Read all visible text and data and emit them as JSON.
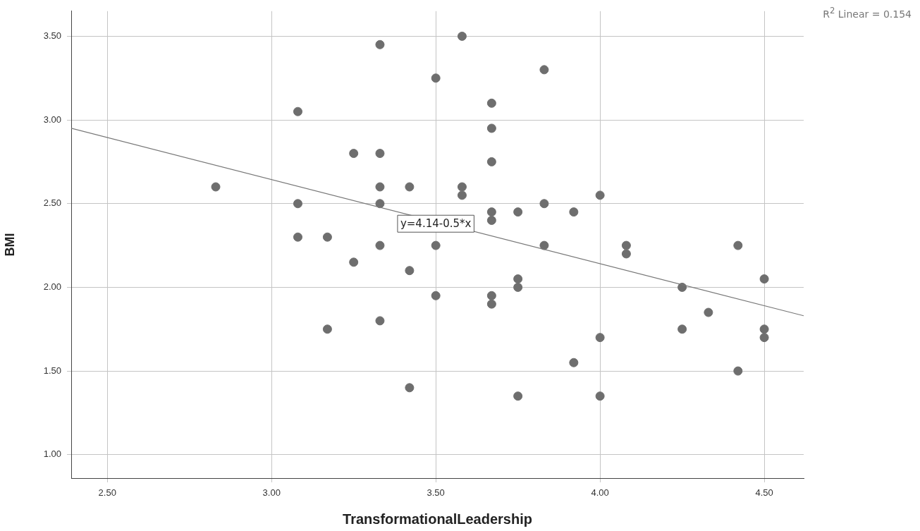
{
  "chart_data": {
    "type": "scatter",
    "xlabel": "TransformationalLeadership",
    "ylabel": "BMI",
    "xlim": [
      2.39,
      4.62
    ],
    "ylim": [
      0.86,
      3.65
    ],
    "xticks": [
      {
        "value": 2.5,
        "label": "2.50"
      },
      {
        "value": 3,
        "label": "3.00"
      },
      {
        "value": 3.5,
        "label": "3.50"
      },
      {
        "value": 4,
        "label": "4.00"
      },
      {
        "value": 4.5,
        "label": "4.50"
      }
    ],
    "yticks": [
      {
        "value": 1,
        "label": "1.00"
      },
      {
        "value": 1.5,
        "label": "1.50"
      },
      {
        "value": 2,
        "label": "2.00"
      },
      {
        "value": 2.5,
        "label": "2.50"
      },
      {
        "value": 3,
        "label": "3.00"
      },
      {
        "value": 3.5,
        "label": "3.50"
      }
    ],
    "grid": true,
    "annotations": [
      "R$^{2}$ Linear = 0.154",
      {
        "text": "y=4.14-0.5*x",
        "x": 3.5,
        "y": 2.38
      }
    ],
    "series": [
      {
        "type": "scatter",
        "marker": "circle",
        "color": "#6e6e6e",
        "x": [
          2.83,
          3.08,
          3.08,
          3.08,
          3.17,
          3.17,
          3.25,
          3.25,
          3.33,
          3.33,
          3.33,
          3.33,
          3.33,
          3.33,
          3.42,
          3.42,
          3.42,
          3.5,
          3.5,
          3.5,
          3.58,
          3.58,
          3.58,
          3.67,
          3.67,
          3.67,
          3.67,
          3.67,
          3.67,
          3.67,
          3.75,
          3.75,
          3.75,
          3.75,
          3.83,
          3.83,
          3.83,
          3.92,
          3.92,
          4,
          4,
          4,
          4.08,
          4.08,
          4.25,
          4.25,
          4.33,
          4.42,
          4.42,
          4.5,
          4.5,
          4.5
        ],
        "values": [
          2.6,
          3.05,
          2.5,
          2.3,
          2.3,
          1.75,
          2.8,
          2.15,
          3.45,
          2.8,
          2.6,
          2.5,
          2.25,
          1.8,
          2.6,
          2.1,
          1.4,
          3.25,
          2.25,
          1.95,
          3.5,
          2.6,
          2.55,
          3.1,
          2.95,
          2.75,
          2.45,
          2.4,
          1.95,
          1.9,
          2.45,
          2.05,
          2.0,
          1.35,
          3.3,
          2.5,
          2.25,
          2.45,
          1.55,
          2.55,
          1.7,
          1.35,
          2.25,
          2.2,
          2.0,
          1.75,
          1.85,
          2.25,
          1.5,
          2.05,
          1.75,
          1.7
        ]
      },
      {
        "type": "line",
        "marker": "none",
        "color": "#777777",
        "x": [
          2.39,
          4.62
        ],
        "values": [
          2.95,
          1.83
        ]
      }
    ]
  }
}
